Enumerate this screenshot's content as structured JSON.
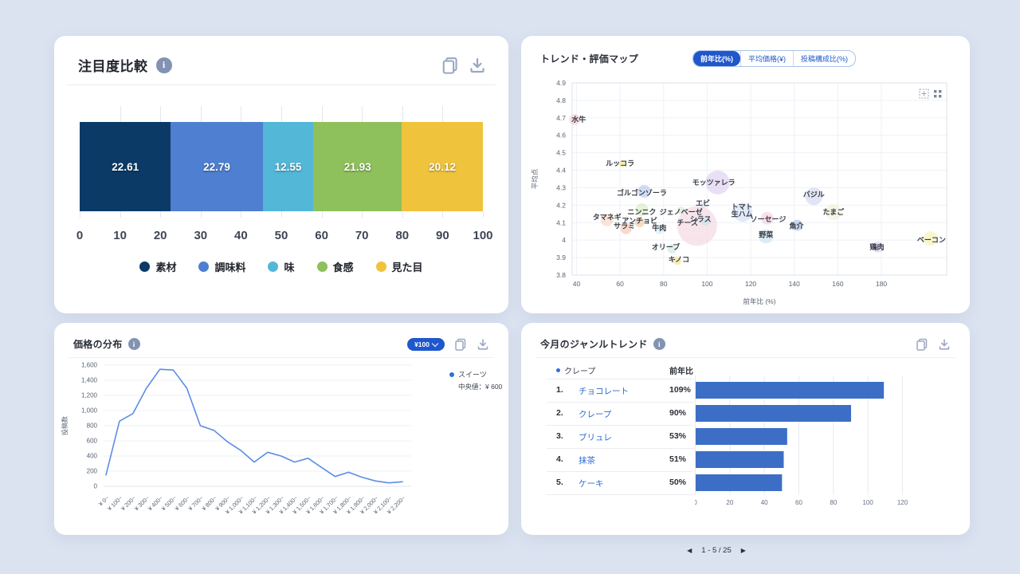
{
  "ui": {
    "info_glyph": "i",
    "icon_color": "#9aa7c3"
  },
  "chart_data": [
    {
      "type": "bar",
      "variant": "stacked-horizontal",
      "title": "注目度比較",
      "header_icons": [
        "info-icon",
        "copy-icon",
        "download-icon"
      ],
      "xlim": [
        0,
        100
      ],
      "xticks": [
        "0",
        "10",
        "20",
        "30",
        "40",
        "50",
        "60",
        "70",
        "80",
        "90",
        "100"
      ],
      "series": [
        {
          "name": "素材",
          "value": 22.61,
          "label": "22.61",
          "color": "#0b3a67"
        },
        {
          "name": "調味料",
          "value": 22.79,
          "label": "22.79",
          "color": "#4e7fd0"
        },
        {
          "name": "味",
          "value": 12.55,
          "label": "12.55",
          "color": "#53b7d8"
        },
        {
          "name": "食感",
          "value": 21.93,
          "label": "21.93",
          "color": "#8ec05c"
        },
        {
          "name": "見た目",
          "value": 20.12,
          "label": "20.12",
          "color": "#f0c33c"
        }
      ]
    },
    {
      "type": "scatter",
      "title": "トレンド・評価マップ",
      "tabs": [
        "前年比(%)",
        "平均価格(¥)",
        "投稿構成比(%)"
      ],
      "active_tab": "前年比(%)",
      "xlabel": "前年比 (%)",
      "ylabel": "平均点",
      "xlim": [
        38,
        210
      ],
      "ylim": [
        3.8,
        4.9
      ],
      "xticks": [
        "40",
        "60",
        "80",
        "100",
        "120",
        "140",
        "160",
        "180"
      ],
      "yticks": [
        "4.9",
        "4.8",
        "4.7",
        "4.6",
        "4.5",
        "4.4",
        "4.3",
        "4.2",
        "4.1",
        "4",
        "3.9",
        "3.8"
      ],
      "points": [
        {
          "label": "水牛",
          "x": 41,
          "y": 4.69,
          "r": 7,
          "color": "#f5c6d2",
          "bdx": -5,
          "bdy": 0
        },
        {
          "label": "ルッコラ",
          "x": 60,
          "y": 4.44,
          "r": 4,
          "color": "#f0dc66",
          "bdx": 3,
          "bdy": 1
        },
        {
          "label": "ゴルゴンゾーラ",
          "x": 70,
          "y": 4.27,
          "r": 8,
          "color": "#a8c0ea",
          "bdx": 3,
          "bdy": -2
        },
        {
          "label": "モッツァレラ",
          "x": 103,
          "y": 4.33,
          "r": 15,
          "color": "#d9c7ee",
          "bdx": 5,
          "bdy": 0
        },
        {
          "label": "タマネギ",
          "x": 54,
          "y": 4.13,
          "r": 8,
          "color": "#f6d0ba",
          "bdx": 0,
          "bdy": 3
        },
        {
          "label": "ニンニク",
          "x": 70,
          "y": 4.16,
          "r": 8,
          "color": "#d2e7ba",
          "bdx": 0,
          "bdy": -3
        },
        {
          "label": "アンチョビ",
          "x": 69,
          "y": 4.11,
          "r": 6,
          "color": "#f3bf8c",
          "bdx": 0,
          "bdy": 2
        },
        {
          "label": "サラミ",
          "x": 62,
          "y": 4.08,
          "r": 7,
          "color": "#f6b8a0",
          "bdx": 2,
          "bdy": 3
        },
        {
          "label": "ジェノベーゼ",
          "x": 88,
          "y": 4.16,
          "r": 5,
          "color": "#cde4c4",
          "bdx": 0,
          "bdy": -2
        },
        {
          "label": "エビ",
          "x": 98,
          "y": 4.21,
          "r": 4,
          "color": "#cfe0f4",
          "bdx": 0,
          "bdy": 2
        },
        {
          "label": "チーズ",
          "x": 91,
          "y": 4.1,
          "r": 25,
          "color": "#f3cfdd",
          "bdx": 12,
          "bdy": 4
        },
        {
          "label": "シラス",
          "x": 97,
          "y": 4.12,
          "r": 6,
          "color": "#c2e1ef",
          "bdx": 6,
          "bdy": 2
        },
        {
          "label": "牛肉",
          "x": 78,
          "y": 4.07,
          "r": 6,
          "color": "#cde9f6",
          "bdx": 0,
          "bdy": 2
        },
        {
          "label": "オリーブ",
          "x": 81,
          "y": 3.96,
          "r": 6,
          "color": "#c5e6d8",
          "bdx": 8,
          "bdy": 2
        },
        {
          "label": "キノコ",
          "x": 87,
          "y": 3.89,
          "r": 5,
          "color": "#eedf6e",
          "bdx": -2,
          "bdy": 2
        },
        {
          "label": "トマト",
          "x": 116,
          "y": 4.19,
          "r": 0,
          "color": "#c9d8f2",
          "bdx": 0,
          "bdy": 0
        },
        {
          "label": "生ハム",
          "x": 116,
          "y": 4.15,
          "r": 12,
          "color": "#c9d8f2",
          "bdx": 1,
          "bdy": -2
        },
        {
          "label": "ソーセージ",
          "x": 128,
          "y": 4.12,
          "r": 8,
          "color": "#f5c6dc",
          "bdx": -1,
          "bdy": -1
        },
        {
          "label": "魚介",
          "x": 141,
          "y": 4.08,
          "r": 7,
          "color": "#a2b7e6",
          "bdx": 1,
          "bdy": -1
        },
        {
          "label": "野菜",
          "x": 127,
          "y": 4.03,
          "r": 9,
          "color": "#c2dcec",
          "bdx": 0,
          "bdy": 2
        },
        {
          "label": "バジル",
          "x": 149,
          "y": 4.26,
          "r": 11,
          "color": "#c7d2ee",
          "bdx": 0,
          "bdy": 2
        },
        {
          "label": "たまご",
          "x": 158,
          "y": 4.16,
          "r": 10,
          "color": "#edefd0",
          "bdx": 0,
          "bdy": 0
        },
        {
          "label": "鶏肉",
          "x": 178,
          "y": 3.96,
          "r": 7,
          "color": "#dbc8ec",
          "bdx": 1,
          "bdy": 0
        },
        {
          "label": "ベーコン",
          "x": 203,
          "y": 4.0,
          "r": 9,
          "color": "#f4efa0",
          "bdx": -1,
          "bdy": -2
        }
      ]
    },
    {
      "type": "line",
      "title": "価格の分布",
      "header_icons": [
        "info-icon",
        "unit-dropdown",
        "copy-icon",
        "download-icon"
      ],
      "unit_selector": "¥100",
      "ylabel": "投稿数",
      "line_color": "#5c8de5",
      "legend": {
        "name": "スイーツ",
        "median_label": "中央値：¥ 600",
        "color": "#2f6fd6"
      },
      "ylim": [
        0,
        1600
      ],
      "ytick_labels": [
        "0",
        "200",
        "400",
        "600",
        "800",
        "1,000",
        "1,200",
        "1,400",
        "1,600"
      ],
      "categories": [
        "¥ 0~",
        "¥ 100~",
        "¥ 200~",
        "¥ 300~",
        "¥ 400~",
        "¥ 500~",
        "¥ 600~",
        "¥ 700~",
        "¥ 800~",
        "¥ 900~",
        "¥ 1,000~",
        "¥ 1,100~",
        "¥ 1,200~",
        "¥ 1,300~",
        "¥ 1,400~",
        "¥ 1,500~",
        "¥ 1,600~",
        "¥ 1,700~",
        "¥ 1,800~",
        "¥ 1,900~",
        "¥ 2,000~",
        "¥ 2,100~",
        "¥ 2,200~"
      ],
      "values": [
        150,
        860,
        960,
        1295,
        1545,
        1535,
        1295,
        800,
        740,
        590,
        475,
        320,
        450,
        400,
        320,
        370,
        250,
        130,
        185,
        120,
        70,
        45,
        60
      ]
    },
    {
      "type": "bar",
      "variant": "horizontal-ranked",
      "title": "今月のジャンルトレンド",
      "header_icons": [
        "info-icon",
        "copy-icon",
        "download-icon"
      ],
      "legend_name": "クレープ",
      "legend_color": "#2f6fd6",
      "col_header": "前年比",
      "bar_color": "#3c6ec6",
      "xlim": [
        0,
        120
      ],
      "xticks": [
        "0",
        "20",
        "40",
        "60",
        "80",
        "100",
        "120"
      ],
      "rows": [
        {
          "rank": "1.",
          "name": "チョコレート",
          "pct": "109%",
          "value": 109
        },
        {
          "rank": "2.",
          "name": "クレープ",
          "pct": "90%",
          "value": 90
        },
        {
          "rank": "3.",
          "name": "ブリュレ",
          "pct": "53%",
          "value": 53
        },
        {
          "rank": "4.",
          "name": "抹茶",
          "pct": "51%",
          "value": 51
        },
        {
          "rank": "5.",
          "name": "ケーキ",
          "pct": "50%",
          "value": 50
        }
      ],
      "pagination": {
        "prev": "◀",
        "label": "1 - 5 / 25",
        "next": "▶"
      }
    }
  ]
}
